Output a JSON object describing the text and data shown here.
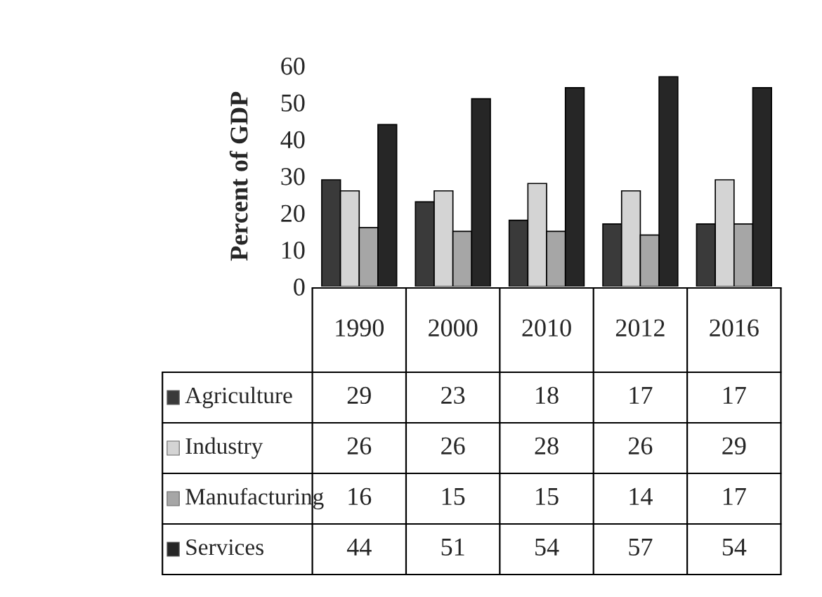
{
  "chart_data": {
    "type": "bar",
    "ylabel": "Percent of GDP",
    "categories": [
      "1990",
      "2000",
      "2010",
      "2012",
      "2016"
    ],
    "series": [
      {
        "name": "Agriculture",
        "color": "#3a3a3a",
        "values": [
          29,
          23,
          18,
          17,
          17
        ]
      },
      {
        "name": "Industry",
        "color": "#d4d4d4",
        "values": [
          26,
          26,
          28,
          26,
          29
        ]
      },
      {
        "name": "Manufacturing",
        "color": "#a6a6a6",
        "values": [
          16,
          15,
          15,
          14,
          17
        ]
      },
      {
        "name": "Services",
        "color": "#262626",
        "values": [
          44,
          51,
          54,
          57,
          54
        ]
      }
    ],
    "ylim": [
      0,
      60
    ],
    "yticks": [
      0,
      10,
      20,
      30,
      40,
      50,
      60
    ],
    "grid": false,
    "legend": "bottom",
    "data_labels": true
  }
}
